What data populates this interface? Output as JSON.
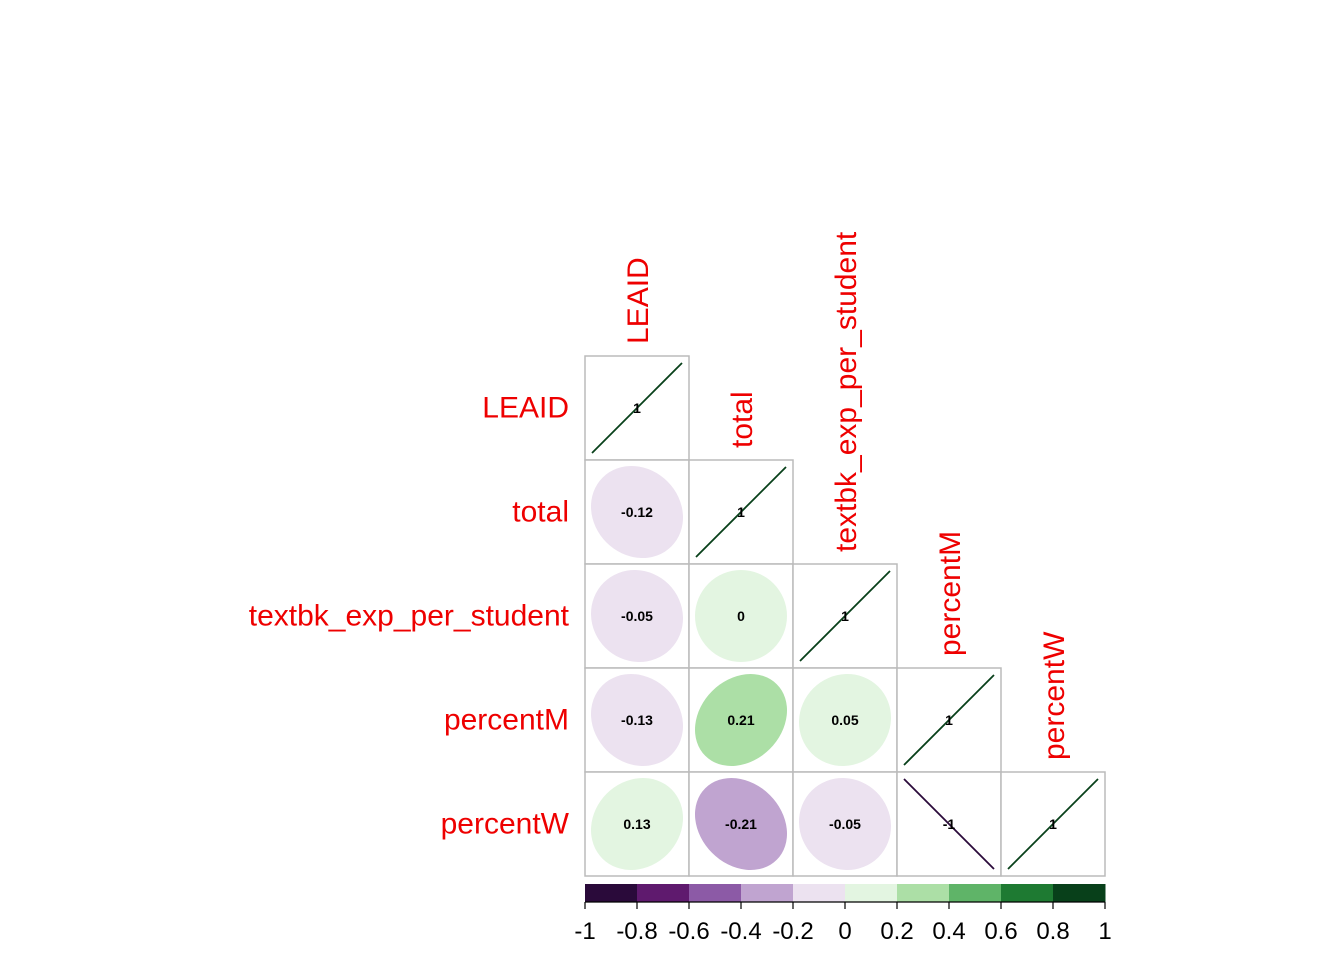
{
  "chart_data": {
    "type": "heatmap",
    "style": "lower-triangular correlation matrix with ellipse glyphs",
    "variables": [
      "LEAID",
      "total",
      "textbk_exp_per_student",
      "percentM",
      "percentW"
    ],
    "matrix": [
      [
        1,
        null,
        null,
        null,
        null
      ],
      [
        -0.12,
        1,
        null,
        null,
        null
      ],
      [
        -0.05,
        0,
        1,
        null,
        null
      ],
      [
        -0.13,
        0.21,
        0.05,
        1,
        null
      ],
      [
        0.13,
        -0.21,
        -0.05,
        -1,
        1
      ]
    ],
    "value_labels": [
      [
        "1"
      ],
      [
        "-0.12",
        "1"
      ],
      [
        "-0.05",
        "0",
        "1"
      ],
      [
        "-0.13",
        "0.21",
        "0.05",
        "1"
      ],
      [
        "0.13",
        "-0.21",
        "-0.05",
        "-1",
        "1"
      ]
    ],
    "colorbar": {
      "range": [
        -1,
        1
      ],
      "ticks": [
        "-1",
        "-0.8",
        "-0.6",
        "-0.4",
        "-0.2",
        "0",
        "0.2",
        "0.4",
        "0.6",
        "0.8",
        "1"
      ],
      "colors": [
        "#2a0a3a",
        "#5f1a6e",
        "#8c5aa6",
        "#c0a4d0",
        "#ece2f0",
        "#e3f5e1",
        "#acdfa6",
        "#5fb468",
        "#1e7a32",
        "#08401a"
      ]
    },
    "label_color": "#ee0000",
    "cell_border_color": "#bbbbbb"
  }
}
